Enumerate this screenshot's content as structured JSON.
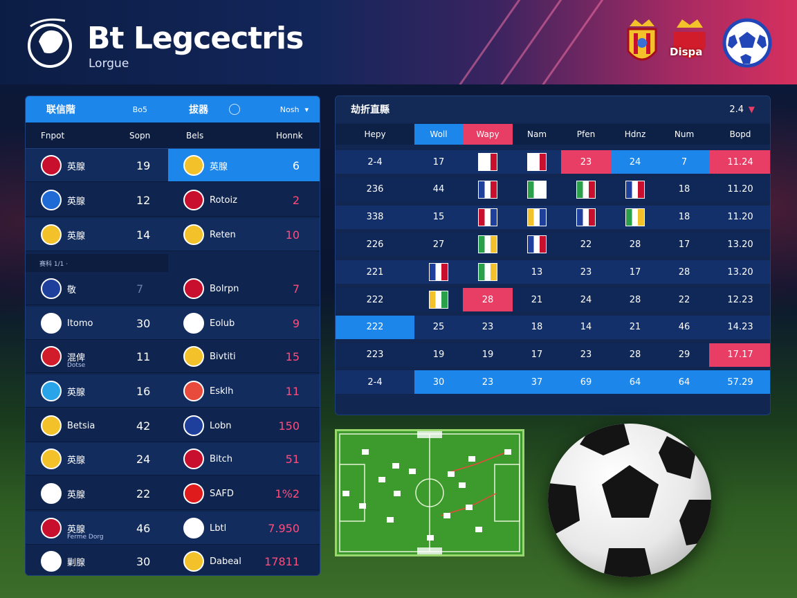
{
  "header": {
    "title": "Bt Legcectris",
    "subtitle": "Lorgue",
    "crest_text": "Dispa"
  },
  "left_panel": {
    "tab1": "联信階",
    "tab1_sub": "Bo5",
    "tab2": "拔器",
    "tab2_sub": "Nosh",
    "col_a": "Fnpot",
    "col_b": "Sopn",
    "col_c": "Bels",
    "col_d": "Honnk",
    "divider_label": "赛科 1/1 ·",
    "rows_left": [
      {
        "name": "英腺",
        "value": "19"
      },
      {
        "name": "英腺",
        "value": "12"
      },
      {
        "name": "英腺",
        "value": "14"
      },
      {
        "name": "敬",
        "value": "7"
      },
      {
        "name": "Itomo",
        "value": "30"
      },
      {
        "name": "混俾",
        "value": "11",
        "sub": "Dotse"
      },
      {
        "name": "英腺",
        "value": "16"
      },
      {
        "name": "Betsia",
        "value": "42"
      },
      {
        "name": "英腺",
        "value": "24"
      },
      {
        "name": "英腺",
        "value": "22"
      },
      {
        "name": "英腺",
        "value": "46",
        "sub": "Ferme Dorg"
      },
      {
        "name": "剿腺",
        "value": "30"
      }
    ],
    "rows_right": [
      {
        "name": "英腺",
        "value": "6"
      },
      {
        "name": "Rotoiz",
        "value": "2"
      },
      {
        "name": "Reten",
        "value": "10"
      },
      {
        "name": "Bolrpn",
        "value": "7"
      },
      {
        "name": "Eolub",
        "value": "9"
      },
      {
        "name": "Bivtiti",
        "value": "15"
      },
      {
        "name": "Esklh",
        "value": "11"
      },
      {
        "name": "Lobn",
        "value": "150"
      },
      {
        "name": "Bitch",
        "value": "51"
      },
      {
        "name": "SAFD",
        "value": "1%2"
      },
      {
        "name": "Lbtl",
        "value": "7.950"
      },
      {
        "name": "Dabeal",
        "value": "17811"
      }
    ]
  },
  "right_panel": {
    "title": "劫折直縣",
    "top_right": "2.4",
    "headers": [
      "Hepy",
      "Woll",
      "Wapy",
      "Nam",
      "Pfen",
      "Hdnz",
      "Num",
      "Bopd"
    ],
    "rows": [
      [
        "2-4",
        "17",
        "",
        "",
        "23",
        "24",
        "7",
        "11.24"
      ],
      [
        "236",
        "44",
        "",
        "",
        "",
        "",
        "18",
        "11.20"
      ],
      [
        "338",
        "15",
        "",
        "",
        "",
        "",
        "18",
        "11.20"
      ],
      [
        "226",
        "27",
        "",
        "",
        "22",
        "28",
        "17",
        "13.20"
      ],
      [
        "221",
        "",
        "",
        "13",
        "23",
        "17",
        "28",
        "13.20"
      ],
      [
        "222",
        "",
        "28",
        "21",
        "24",
        "28",
        "22",
        "12.23"
      ],
      [
        "222",
        "25",
        "23",
        "18",
        "14",
        "21",
        "46",
        "14.23"
      ],
      [
        "223",
        "19",
        "19",
        "17",
        "23",
        "28",
        "29",
        "17.17"
      ],
      [
        "2-4",
        "30",
        "23",
        "37",
        "69",
        "64",
        "64",
        "57.29"
      ]
    ]
  },
  "colors": {
    "blue": "#1e8ff0",
    "pink": "#e83d64",
    "dark": "#0f2550"
  }
}
